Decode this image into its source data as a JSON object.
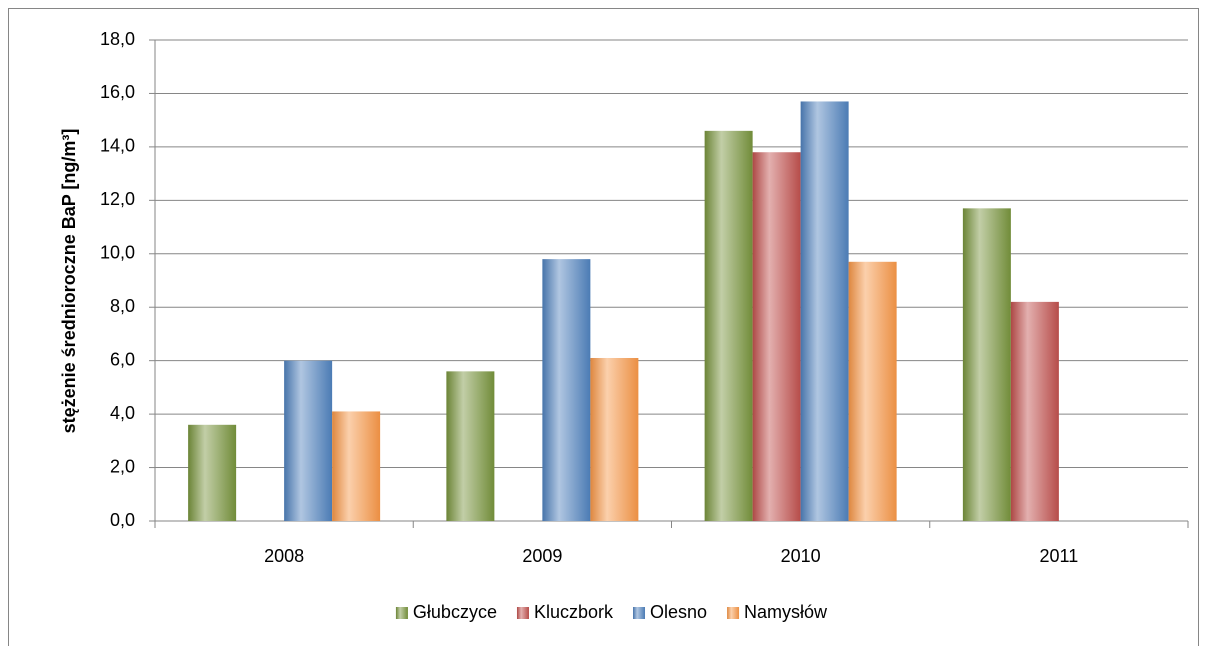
{
  "chart_data": {
    "type": "bar",
    "y_label": "stężenie średnioroczne BaP [ng/m³]",
    "categories": [
      "2008",
      "2009",
      "2010",
      "2011"
    ],
    "series": [
      {
        "name": "Głubczyce",
        "color": "#77933c",
        "values": [
          3.6,
          5.6,
          14.6,
          11.7
        ]
      },
      {
        "name": "Kluczbork",
        "color": "#c0504d",
        "values": [
          null,
          null,
          13.8,
          8.2
        ]
      },
      {
        "name": "Olesno",
        "color": "#4f81bd",
        "values": [
          6.0,
          9.8,
          15.7,
          null
        ]
      },
      {
        "name": "Namysłów",
        "color": "#f79646",
        "values": [
          4.1,
          6.1,
          9.7,
          null
        ]
      }
    ],
    "ylim": [
      0,
      18
    ],
    "yticks": [
      {
        "value": 0,
        "label": "0,0"
      },
      {
        "value": 2,
        "label": "2,0"
      },
      {
        "value": 4,
        "label": "4,0"
      },
      {
        "value": 6,
        "label": "6,0"
      },
      {
        "value": 8,
        "label": "8,0"
      },
      {
        "value": 10,
        "label": "10,0"
      },
      {
        "value": 12,
        "label": "12,0"
      },
      {
        "value": 14,
        "label": "14,0"
      },
      {
        "value": 16,
        "label": "16,0"
      },
      {
        "value": 18,
        "label": "18,0"
      }
    ],
    "grid": true,
    "legend": "bottom"
  }
}
